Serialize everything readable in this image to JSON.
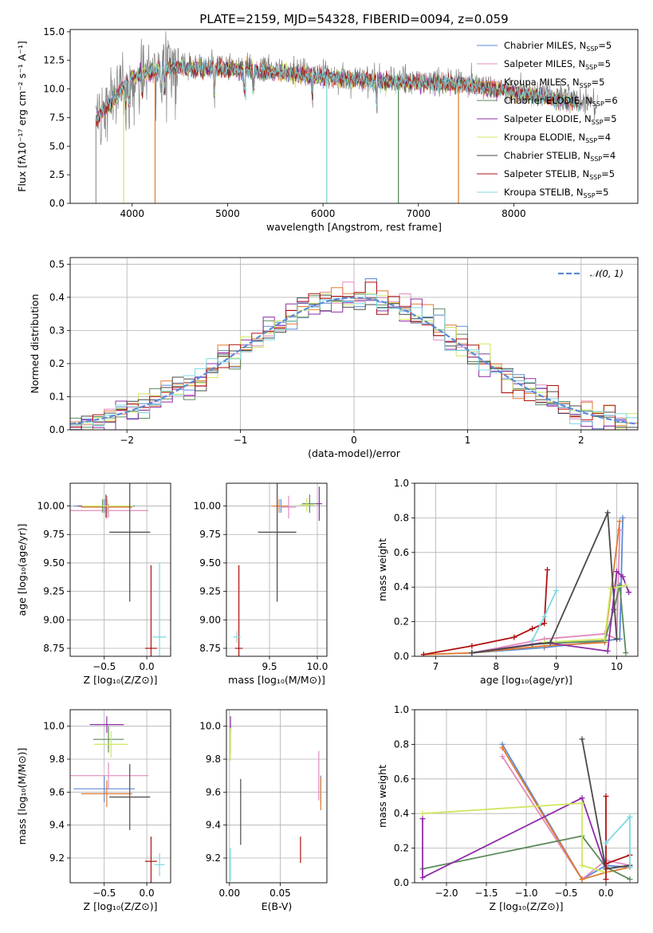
{
  "chart_data": [
    {
      "id": "spectrum",
      "type": "line",
      "title": "PLATE=2159, MJD=54328, FIBERID=0094, z=0.059",
      "xlabel": "wavelength [Angstrom, rest frame]",
      "ylabel": "Flux [fλ10⁻¹⁷ erg cm⁻² s⁻¹ A⁻¹]",
      "xlim": [
        3350,
        9300
      ],
      "ylim": [
        0,
        15.2
      ],
      "xticks": [
        "4000",
        "5000",
        "6000",
        "7000",
        "8000"
      ],
      "xtick_values": [
        4000,
        5000,
        6000,
        7000,
        8000
      ],
      "yticks": [
        "0.0",
        "2.5",
        "5.0",
        "7.5",
        "10.0",
        "12.5",
        "15.0"
      ],
      "ytick_values": [
        0,
        2.5,
        5,
        7.5,
        10,
        12.5,
        15
      ],
      "legend_position": "top-right",
      "series": [
        {
          "name": "Chabrier MILES, N_SSP=5",
          "label_main": "Chabrier MILES, N",
          "label_sub": "SSP",
          "label_tail": "=5",
          "color": "#5b8bd6"
        },
        {
          "name": "Salpeter MILES, N_SSP=5",
          "label_main": "Salpeter MILES, N",
          "label_sub": "SSP",
          "label_tail": "=5",
          "color": "#e38bbd"
        },
        {
          "name": "Kroupa MILES, N_SSP=5",
          "label_main": "Kroupa MILES, N",
          "label_sub": "SSP",
          "label_tail": "=5",
          "color": "#e07b30"
        },
        {
          "name": "Chabrier ELODIE, N_SSP=6",
          "label_main": "Chabrier ELODIE, N",
          "label_sub": "SSP",
          "label_tail": "=6",
          "color": "#5c8a5c"
        },
        {
          "name": "Salpeter ELODIE, N_SSP=5",
          "label_main": "Salpeter ELODIE, N",
          "label_sub": "SSP",
          "label_tail": "=5",
          "color": "#8e2ca8"
        },
        {
          "name": "Kroupa ELODIE, N_SSP=4",
          "label_main": "Kroupa ELODIE, N",
          "label_sub": "SSP",
          "label_tail": "=4",
          "color": "#cde860"
        },
        {
          "name": "Chabrier STELIB, N_SSP=4",
          "label_main": "Chabrier STELIB, N",
          "label_sub": "SSP",
          "label_tail": "=4",
          "color": "#4a4a4a"
        },
        {
          "name": "Salpeter STELIB, N_SSP=5",
          "label_main": "Salpeter STELIB, N",
          "label_sub": "SSP",
          "label_tail": "=5",
          "color": "#b01010"
        },
        {
          "name": "Kroupa STELIB, N_SSP=5",
          "label_main": "Kroupa STELIB, N",
          "label_sub": "SSP",
          "label_tail": "=5",
          "color": "#7fd8e0"
        }
      ],
      "data_color": "#808080"
    },
    {
      "id": "residuals",
      "type": "histogram",
      "xlabel": "(data-model)/error",
      "ylabel": "Normed distribution",
      "xlim": [
        -2.5,
        2.5
      ],
      "ylim": [
        0,
        0.52
      ],
      "xticks": [
        "−2",
        "−1",
        "0",
        "1",
        "2"
      ],
      "xtick_values": [
        -2,
        -1,
        0,
        1,
        2
      ],
      "yticks": [
        "0.0",
        "0.1",
        "0.2",
        "0.3",
        "0.4",
        "0.5"
      ],
      "ytick_values": [
        0,
        0.1,
        0.2,
        0.3,
        0.4,
        0.5
      ],
      "grid": true,
      "legend": "𝒩(0, 1)",
      "legend_position": "top-right",
      "normal_color": "#5b8bd6",
      "bin_width": 0.1
    },
    {
      "id": "age-vs-Z",
      "type": "errorbar",
      "xlabel": "Z [log₁₀(Z/Z⊙)]",
      "ylabel": "age  [log₁₀(age/yr)]",
      "xlim": [
        -0.9,
        0.28
      ],
      "ylim": [
        8.68,
        10.2
      ],
      "xticks": [
        "−0.5",
        "0.0"
      ],
      "xtick_values": [
        -0.5,
        0.0
      ],
      "yticks": [
        "8.75",
        "9.00",
        "9.25",
        "9.50",
        "9.75",
        "10.00"
      ],
      "ytick_values": [
        8.75,
        9.0,
        9.25,
        9.5,
        9.75,
        10.0
      ],
      "grid": true,
      "points": [
        {
          "x": -0.5,
          "y": 10.0,
          "xerr": 0.36,
          "yerr": 0.06,
          "c": 0
        },
        {
          "x": -0.45,
          "y": 9.96,
          "xerr": 0.47,
          "yerr": 0.06,
          "c": 1
        },
        {
          "x": -0.47,
          "y": 9.99,
          "xerr": 0.3,
          "yerr": 0.1,
          "c": 2
        },
        {
          "x": -0.52,
          "y": 10.0,
          "xerr": 0.3,
          "yerr": 0.06,
          "c": 3
        },
        {
          "x": -0.48,
          "y": 10.0,
          "xerr": 0.33,
          "yerr": 0.1,
          "c": 4
        },
        {
          "x": -0.46,
          "y": 10.0,
          "xerr": 0.3,
          "yerr": 0.06,
          "c": 5
        },
        {
          "x": -0.2,
          "y": 9.77,
          "xerr": 0.24,
          "yerr": 0.61,
          "c": 6
        },
        {
          "x": 0.05,
          "y": 8.75,
          "xerr": 0.07,
          "yerr": 0.73,
          "c": 7
        },
        {
          "x": 0.15,
          "y": 8.85,
          "xerr": 0.08,
          "yerr": 0.65,
          "c": 8
        }
      ]
    },
    {
      "id": "age-vs-mass",
      "type": "errorbar",
      "xlabel": "mass [log₁₀(M/M⊙)]",
      "ylabel": "",
      "xlim": [
        9.05,
        10.1
      ],
      "ylim": [
        8.68,
        10.2
      ],
      "xticks": [
        "9.5",
        "10.0"
      ],
      "xtick_values": [
        9.5,
        10.0
      ],
      "yticks": [
        "8.75",
        "9.00",
        "9.25",
        "9.50",
        "9.75",
        "10.00"
      ],
      "ytick_values": [
        8.75,
        9.0,
        9.25,
        9.5,
        9.75,
        10.0
      ],
      "grid": true,
      "points": [
        {
          "x": 9.62,
          "y": 10.0,
          "xerr": 0.08,
          "yerr": 0.06,
          "c": 0
        },
        {
          "x": 9.7,
          "y": 9.99,
          "xerr": 0.08,
          "yerr": 0.1,
          "c": 1
        },
        {
          "x": 9.6,
          "y": 10.0,
          "xerr": 0.08,
          "yerr": 0.06,
          "c": 2
        },
        {
          "x": 9.92,
          "y": 10.02,
          "xerr": 0.08,
          "yerr": 0.08,
          "c": 3
        },
        {
          "x": 10.02,
          "y": 10.02,
          "xerr": 0.03,
          "yerr": 0.15,
          "c": 4
        },
        {
          "x": 9.89,
          "y": 10.01,
          "xerr": 0.08,
          "yerr": 0.06,
          "c": 5
        },
        {
          "x": 9.58,
          "y": 9.77,
          "xerr": 0.2,
          "yerr": 0.61,
          "c": 6
        },
        {
          "x": 9.18,
          "y": 8.75,
          "xerr": 0.04,
          "yerr": 0.73,
          "c": 7
        },
        {
          "x": 9.16,
          "y": 8.85,
          "xerr": 0.04,
          "yerr": 0.05,
          "c": 8
        }
      ]
    },
    {
      "id": "weight-vs-age",
      "type": "line",
      "xlabel": "age  [log₁₀(age/yr)]",
      "ylabel": "mass weight",
      "xlim": [
        6.65,
        10.35
      ],
      "ylim": [
        0,
        1
      ],
      "xticks": [
        "7",
        "8",
        "9",
        "10"
      ],
      "xtick_values": [
        7,
        8,
        9,
        10
      ],
      "yticks": [
        "0.0",
        "0.2",
        "0.4",
        "0.6",
        "0.8",
        "1.0"
      ],
      "ytick_values": [
        0,
        0.2,
        0.4,
        0.6,
        0.8,
        1.0
      ],
      "grid": true,
      "series": [
        {
          "c": 0,
          "x": [
            7.6,
            8.8,
            9.8,
            10.05,
            10.1
          ],
          "y": [
            0.02,
            0.05,
            0.09,
            0.1,
            0.8
          ]
        },
        {
          "c": 1,
          "x": [
            7.6,
            8.8,
            9.8,
            10.0,
            10.05
          ],
          "y": [
            0.02,
            0.1,
            0.13,
            0.1,
            0.73
          ]
        },
        {
          "c": 2,
          "x": [
            6.8,
            7.6,
            8.8,
            9.8,
            10.05
          ],
          "y": [
            0.01,
            0.02,
            0.06,
            0.08,
            0.78
          ]
        },
        {
          "c": 3,
          "x": [
            8.6,
            9.8,
            9.95,
            10.05,
            10.15
          ],
          "y": [
            0.07,
            0.09,
            0.27,
            0.41,
            0.02
          ]
        },
        {
          "c": 4,
          "x": [
            7.6,
            8.8,
            9.85,
            10.0,
            10.1,
            10.2
          ],
          "y": [
            0.02,
            0.08,
            0.03,
            0.49,
            0.46,
            0.37
          ]
        },
        {
          "c": 5,
          "x": [
            8.8,
            9.8,
            9.9,
            10.15
          ],
          "y": [
            0.08,
            0.1,
            0.39,
            0.41
          ]
        },
        {
          "c": 6,
          "x": [
            7.6,
            8.9,
            9.85,
            10.0
          ],
          "y": [
            0.02,
            0.08,
            0.83,
            0.1
          ]
        },
        {
          "c": 7,
          "x": [
            6.8,
            7.6,
            8.3,
            8.6,
            8.8,
            8.85
          ],
          "y": [
            0.01,
            0.06,
            0.11,
            0.16,
            0.19,
            0.5
          ]
        },
        {
          "c": 8,
          "x": [
            8.6,
            8.8,
            9.0
          ],
          "y": [
            0.09,
            0.23,
            0.38
          ]
        }
      ]
    },
    {
      "id": "mass-vs-Z",
      "type": "errorbar",
      "xlabel": "Z [log₁₀(Z/Z⊙)]",
      "ylabel": "mass [log₁₀(M/M⊙)]",
      "xlim": [
        -0.9,
        0.28
      ],
      "ylim": [
        9.05,
        10.1
      ],
      "xticks": [
        "−0.5",
        "0.0"
      ],
      "xtick_values": [
        -0.5,
        0.0
      ],
      "yticks": [
        "9.2",
        "9.4",
        "9.6",
        "9.8",
        "10.0"
      ],
      "ytick_values": [
        9.2,
        9.4,
        9.6,
        9.8,
        10.0
      ],
      "grid": true,
      "points": [
        {
          "x": -0.5,
          "y": 9.62,
          "xerr": 0.36,
          "yerr": 0.08,
          "c": 0
        },
        {
          "x": -0.45,
          "y": 9.7,
          "xerr": 0.47,
          "yerr": 0.08,
          "c": 1
        },
        {
          "x": -0.47,
          "y": 9.59,
          "xerr": 0.3,
          "yerr": 0.08,
          "c": 2
        },
        {
          "x": -0.45,
          "y": 9.92,
          "xerr": 0.18,
          "yerr": 0.08,
          "c": 3
        },
        {
          "x": -0.47,
          "y": 10.01,
          "xerr": 0.2,
          "yerr": 0.05,
          "c": 4
        },
        {
          "x": -0.42,
          "y": 9.89,
          "xerr": 0.2,
          "yerr": 0.08,
          "c": 5
        },
        {
          "x": -0.2,
          "y": 9.57,
          "xerr": 0.24,
          "yerr": 0.2,
          "c": 6
        },
        {
          "x": 0.05,
          "y": 9.18,
          "xerr": 0.07,
          "yerr": 0.15,
          "c": 7
        },
        {
          "x": 0.15,
          "y": 9.16,
          "xerr": 0.06,
          "yerr": 0.07,
          "c": 8
        }
      ]
    },
    {
      "id": "mass-vs-EBV",
      "type": "errorbar",
      "xlabel": "E(B-V)",
      "ylabel": "",
      "xlim": [
        -0.003,
        0.096
      ],
      "ylim": [
        9.05,
        10.1
      ],
      "xticks": [
        "0.00",
        "0.05"
      ],
      "xtick_values": [
        0.0,
        0.05
      ],
      "yticks": [
        "9.2",
        "9.4",
        "9.6",
        "9.8",
        "10.0"
      ],
      "ytick_values": [
        9.2,
        9.4,
        9.6,
        9.8,
        10.0
      ],
      "grid": true,
      "points": [
        {
          "x": 0.09,
          "y": 9.62,
          "xerr": 0.0,
          "yerr": 0.08,
          "c": 0
        },
        {
          "x": 0.088,
          "y": 9.7,
          "xerr": 0.0,
          "yerr": 0.15,
          "c": 1
        },
        {
          "x": 0.09,
          "y": 9.59,
          "xerr": 0.0,
          "yerr": 0.1,
          "c": 2
        },
        {
          "x": 0.001,
          "y": 9.92,
          "xerr": 0.0,
          "yerr": 0.08,
          "c": 3
        },
        {
          "x": 0.001,
          "y": 10.01,
          "xerr": 0.0,
          "yerr": 0.05,
          "c": 4
        },
        {
          "x": 0.001,
          "y": 9.89,
          "xerr": 0.0,
          "yerr": 0.1,
          "c": 5
        },
        {
          "x": 0.011,
          "y": 9.48,
          "xerr": 0.0,
          "yerr": 0.2,
          "c": 6
        },
        {
          "x": 0.07,
          "y": 9.25,
          "xerr": 0.0,
          "yerr": 0.08,
          "c": 7
        },
        {
          "x": 0.001,
          "y": 9.16,
          "xerr": 0.0,
          "yerr": 0.1,
          "c": 8
        }
      ]
    },
    {
      "id": "weight-vs-Z",
      "type": "line",
      "xlabel": "Z [log₁₀(Z/Z⊙)]",
      "ylabel": "mass weight",
      "xlim": [
        -2.4,
        0.4
      ],
      "ylim": [
        0,
        1
      ],
      "xticks": [
        "−2.0",
        "−1.5",
        "−1.0",
        "−0.5",
        "0.0"
      ],
      "xtick_values": [
        -2.0,
        -1.5,
        -1.0,
        -0.5,
        0.0
      ],
      "yticks": [
        "0.0",
        "0.2",
        "0.4",
        "0.6",
        "0.8",
        "1.0"
      ],
      "ytick_values": [
        0,
        0.2,
        0.4,
        0.6,
        0.8,
        1.0
      ],
      "grid": true,
      "series": [
        {
          "c": 0,
          "x": [
            -1.3,
            -0.3,
            0.0,
            0.3
          ],
          "y": [
            0.8,
            0.02,
            0.1,
            0.09
          ]
        },
        {
          "c": 1,
          "x": [
            -1.3,
            -0.3,
            0.0,
            0.3
          ],
          "y": [
            0.73,
            0.02,
            0.13,
            0.1
          ]
        },
        {
          "c": 2,
          "x": [
            -1.3,
            -0.3,
            0.0,
            0.3
          ],
          "y": [
            0.78,
            0.02,
            0.06,
            0.09
          ]
        },
        {
          "c": 3,
          "x": [
            -2.3,
            -0.3,
            0.0,
            0.3
          ],
          "y": [
            0.08,
            0.27,
            0.09,
            0.02
          ]
        },
        {
          "c": 4,
          "x": [
            -2.3,
            -2.3,
            -0.3,
            0.0,
            0.3
          ],
          "y": [
            0.37,
            0.03,
            0.49,
            0.08,
            0.1
          ]
        },
        {
          "c": 5,
          "x": [
            -2.3,
            -0.3,
            -0.3,
            0.0
          ],
          "y": [
            0.4,
            0.46,
            0.1,
            0.06
          ]
        },
        {
          "c": 6,
          "x": [
            -0.3,
            0.0,
            0.3
          ],
          "y": [
            0.83,
            0.08,
            0.1
          ]
        },
        {
          "c": 7,
          "x": [
            0.0,
            0.0,
            0.0,
            0.3
          ],
          "y": [
            0.5,
            0.02,
            0.11,
            0.16
          ]
        },
        {
          "c": 8,
          "x": [
            0.0,
            0.3,
            0.3
          ],
          "y": [
            0.23,
            0.38,
            0.09
          ]
        }
      ]
    }
  ]
}
